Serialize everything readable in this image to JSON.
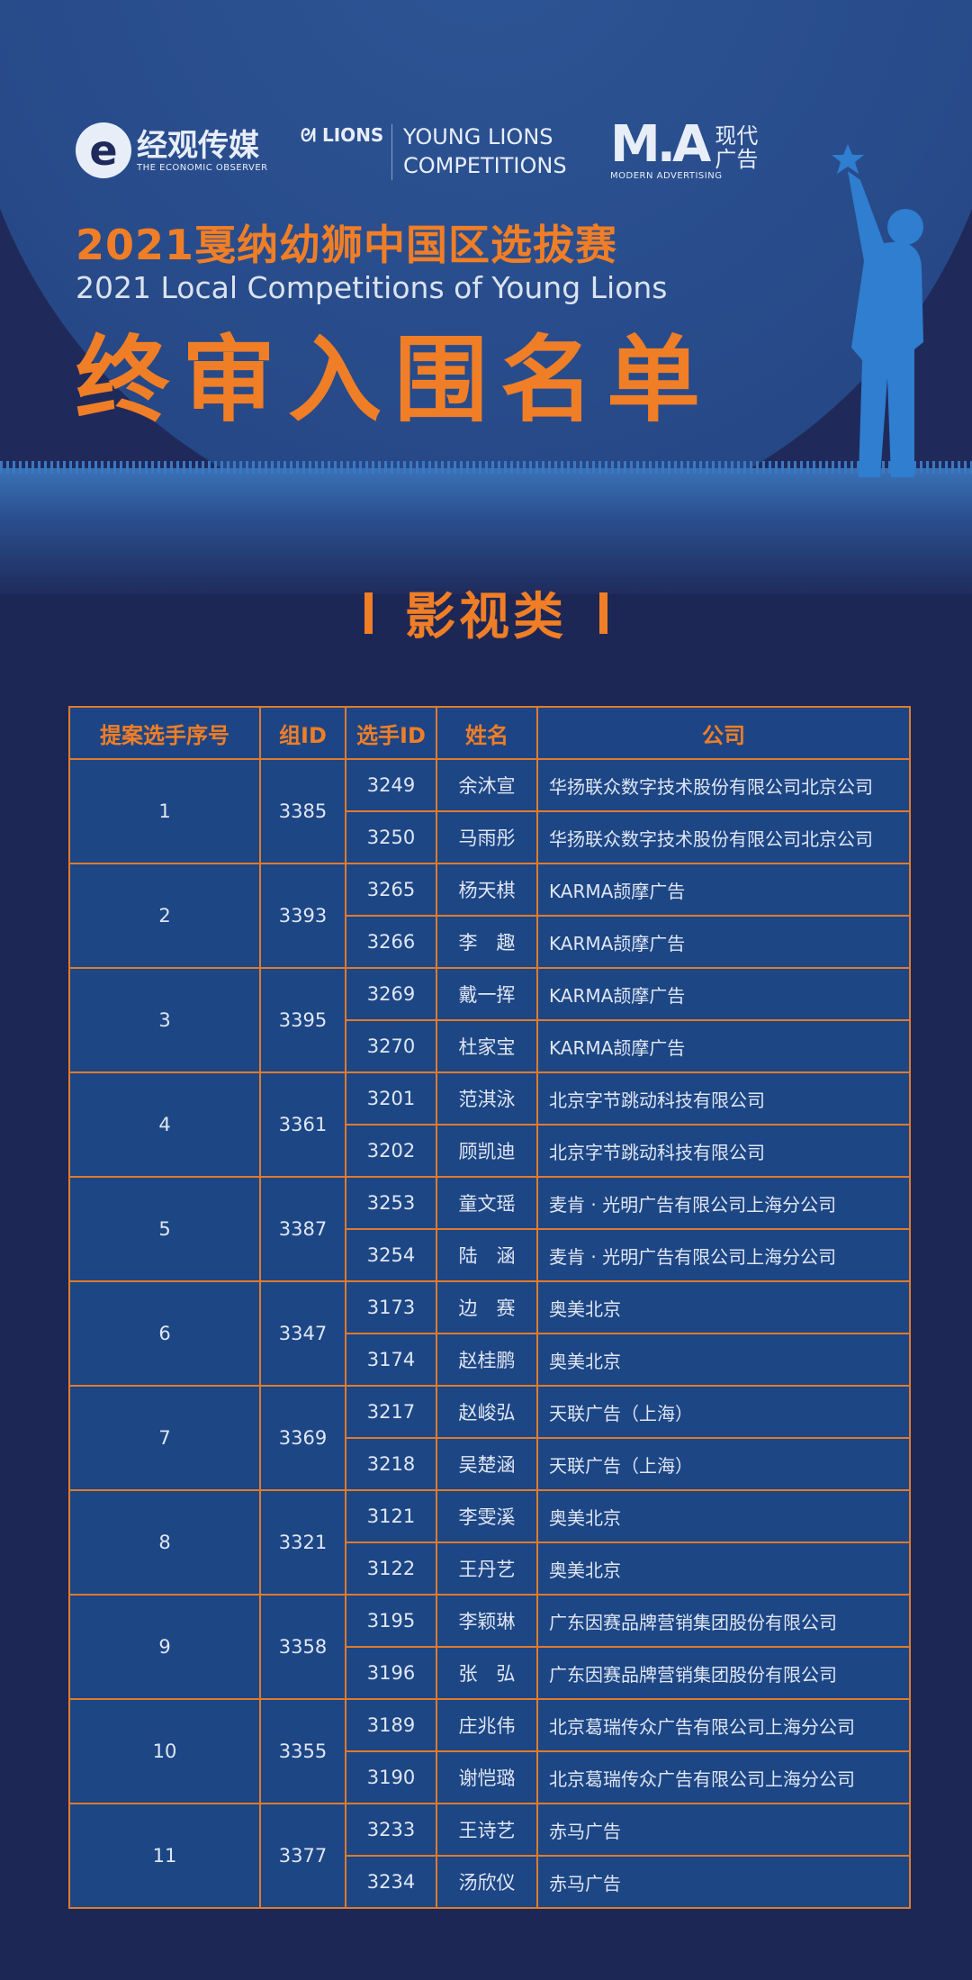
{
  "logos": {
    "economic_observer": {
      "mark": "e",
      "cn": "经观传媒",
      "en": "THE ECONOMIC OBSERVER"
    },
    "lions": "LIONS",
    "young_lions": [
      "YOUNG LIONS",
      "COMPETITIONS"
    ],
    "modern_advertising": {
      "mark": "M.A",
      "cn": "现代广告",
      "en": "MODERN ADVERTISING"
    }
  },
  "titles": {
    "cn": "2021戛纳幼狮中国区选拔赛",
    "en": "2021 Local Competitions of Young Lions",
    "main": "终审入围名单"
  },
  "section": {
    "title": "影视类"
  },
  "colors": {
    "accent": "#f07e26",
    "background": "#1d2856",
    "cell": "#1d4685",
    "border": "#e07b2c"
  },
  "table": {
    "headers": [
      "提案选手序号",
      "组ID",
      "选手ID",
      "姓名",
      "公司"
    ],
    "groups": [
      {
        "no": "1",
        "group_id": "3385",
        "members": [
          {
            "id": "3249",
            "name": "余沐宣",
            "company": "华扬联众数字技术股份有限公司北京公司"
          },
          {
            "id": "3250",
            "name": "马雨彤",
            "company": "华扬联众数字技术股份有限公司北京公司"
          }
        ]
      },
      {
        "no": "2",
        "group_id": "3393",
        "members": [
          {
            "id": "3265",
            "name": "杨天棋",
            "company": "KARMA颉摩广告"
          },
          {
            "id": "3266",
            "name": "李　趣",
            "company": "KARMA颉摩广告"
          }
        ]
      },
      {
        "no": "3",
        "group_id": "3395",
        "members": [
          {
            "id": "3269",
            "name": "戴一挥",
            "company": "KARMA颉摩广告"
          },
          {
            "id": "3270",
            "name": "杜家宝",
            "company": "KARMA颉摩广告"
          }
        ]
      },
      {
        "no": "4",
        "group_id": "3361",
        "members": [
          {
            "id": "3201",
            "name": "范淇泳",
            "company": "北京字节跳动科技有限公司"
          },
          {
            "id": "3202",
            "name": "顾凯迪",
            "company": "北京字节跳动科技有限公司"
          }
        ]
      },
      {
        "no": "5",
        "group_id": "3387",
        "members": [
          {
            "id": "3253",
            "name": "童文瑶",
            "company": "麦肯 · 光明广告有限公司上海分公司"
          },
          {
            "id": "3254",
            "name": "陆　涵",
            "company": "麦肯 · 光明广告有限公司上海分公司"
          }
        ]
      },
      {
        "no": "6",
        "group_id": "3347",
        "members": [
          {
            "id": "3173",
            "name": "边　赛",
            "company": "奥美北京"
          },
          {
            "id": "3174",
            "name": "赵桂鹏",
            "company": "奥美北京"
          }
        ]
      },
      {
        "no": "7",
        "group_id": "3369",
        "members": [
          {
            "id": "3217",
            "name": "赵峻弘",
            "company": "天联广告（上海）"
          },
          {
            "id": "3218",
            "name": "吴楚涵",
            "company": "天联广告（上海）"
          }
        ]
      },
      {
        "no": "8",
        "group_id": "3321",
        "members": [
          {
            "id": "3121",
            "name": "李雯溪",
            "company": "奥美北京"
          },
          {
            "id": "3122",
            "name": "王丹艺",
            "company": "奥美北京"
          }
        ]
      },
      {
        "no": "9",
        "group_id": "3358",
        "members": [
          {
            "id": "3195",
            "name": "李颖琳",
            "company": "广东因赛品牌营销集团股份有限公司"
          },
          {
            "id": "3196",
            "name": "张　弘",
            "company": "广东因赛品牌营销集团股份有限公司"
          }
        ]
      },
      {
        "no": "10",
        "group_id": "3355",
        "members": [
          {
            "id": "3189",
            "name": "庄兆伟",
            "company": "北京葛瑞传众广告有限公司上海分公司"
          },
          {
            "id": "3190",
            "name": "谢恺璐",
            "company": "北京葛瑞传众广告有限公司上海分公司"
          }
        ]
      },
      {
        "no": "11",
        "group_id": "3377",
        "members": [
          {
            "id": "3233",
            "name": "王诗艺",
            "company": "赤马广告"
          },
          {
            "id": "3234",
            "name": "汤欣仪",
            "company": "赤马广告"
          }
        ]
      }
    ]
  }
}
